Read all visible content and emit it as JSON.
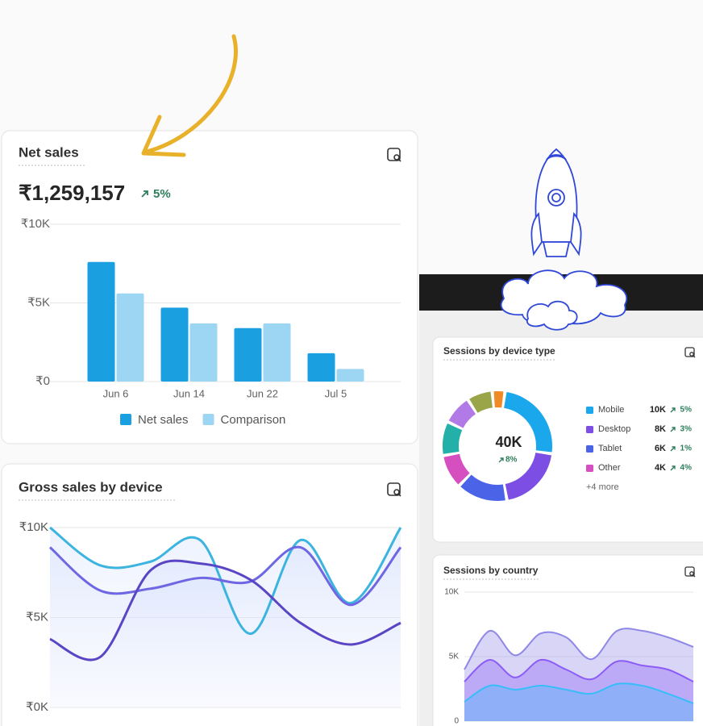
{
  "chart_data": [
    {
      "type": "bar",
      "title": "Net sales",
      "total": "₹1,259,157",
      "change": "5%",
      "categories": [
        "Jun 6",
        "Jun 14",
        "Jun 22",
        "Jul 5"
      ],
      "series": [
        {
          "name": "Net sales",
          "color": "#1a9fe0",
          "values": [
            7600,
            4700,
            3400,
            1800
          ]
        },
        {
          "name": "Comparison",
          "color": "#9dd6f2",
          "values": [
            5600,
            3700,
            3700,
            800
          ]
        }
      ],
      "ylim": [
        0,
        10000
      ],
      "yticks": [
        {
          "value": 0,
          "label": "₹0"
        },
        {
          "value": 5000,
          "label": "₹5K"
        },
        {
          "value": 10000,
          "label": "₹10K"
        }
      ],
      "grid": true,
      "legend": "bottom"
    },
    {
      "type": "line",
      "title": "Gross sales by device",
      "categories": [
        null,
        null,
        null,
        null,
        null,
        null,
        null,
        null
      ],
      "series": [
        {
          "color": "#3cb4e0",
          "values": [
            10000,
            7900,
            8100,
            9300,
            4100,
            9300,
            5800,
            10000
          ]
        },
        {
          "color": "#6e66e2",
          "values": [
            8900,
            6500,
            6600,
            7200,
            7000,
            8900,
            5700,
            8900
          ]
        },
        {
          "color": "#5a45c4",
          "values": [
            3800,
            2800,
            7600,
            8000,
            7100,
            4700,
            3500,
            4700
          ]
        }
      ],
      "ylim": [
        0,
        10000
      ],
      "yticks": [
        {
          "value": 0,
          "label": "₹0K"
        },
        {
          "value": 5000,
          "label": "₹5K"
        },
        {
          "value": 10000,
          "label": "₹10K"
        }
      ],
      "grid": true
    },
    {
      "type": "donut",
      "title": "Sessions by device type",
      "total": "40K",
      "change": "8%",
      "more": "+4 more",
      "categories": [
        "Mobile",
        "Desktop",
        "Tablet",
        "Other",
        null,
        null,
        null,
        null
      ],
      "values": [
        10000,
        8000,
        6000,
        4000,
        4000,
        3500,
        3000,
        1500
      ],
      "value_labels": [
        "10K",
        "8K",
        "6K",
        "4K",
        null,
        null,
        null,
        null
      ],
      "changes": [
        "5%",
        "3%",
        "1%",
        "4%",
        null,
        null,
        null,
        null
      ],
      "colors": [
        "#1aa7ec",
        "#7c4ee4",
        "#4a63e7",
        "#d64fc0",
        "#22b0a8",
        "#b27ae6",
        "#9aa54a",
        "#f08a24"
      ]
    },
    {
      "type": "area",
      "title": "Sessions by country",
      "categories": [
        null,
        null,
        null,
        null,
        null,
        null,
        null,
        null,
        null,
        null
      ],
      "series": [
        {
          "color": "#8f88e8",
          "values": [
            4000,
            7000,
            5100,
            6800,
            6500,
            4800,
            7000,
            7000,
            6500,
            5750
          ]
        },
        {
          "color": "#8b5cf6",
          "values": [
            3060,
            4750,
            3380,
            4750,
            4000,
            3250,
            4630,
            4310,
            4000,
            3060
          ]
        },
        {
          "color": "#38bdf8",
          "values": [
            1500,
            2750,
            2440,
            2750,
            2440,
            2130,
            2880,
            2750,
            2130,
            1380
          ]
        }
      ],
      "ylim": [
        0,
        10000
      ],
      "yticks": [
        0,
        {
          "value": 5000,
          "label": "5K"
        },
        {
          "value": 10000,
          "label": "10K"
        }
      ],
      "grid": true
    }
  ]
}
